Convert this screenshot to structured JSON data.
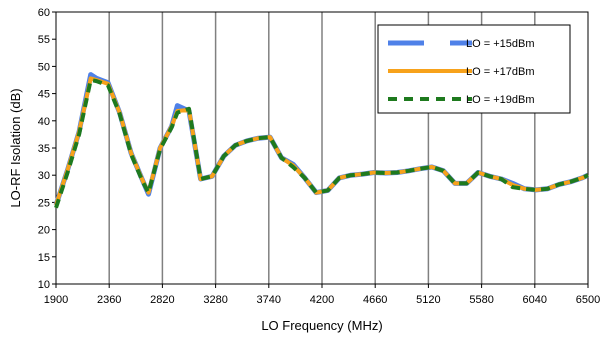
{
  "chart_data": {
    "type": "line",
    "xlabel": "LO Frequency (MHz)",
    "ylabel": "LO-RF Isolation (dB)",
    "xlim": [
      1900,
      6500
    ],
    "ylim": [
      10,
      60
    ],
    "x_ticks": [
      1900,
      2360,
      2820,
      3280,
      3740,
      4200,
      4660,
      5120,
      5580,
      6040,
      6500
    ],
    "y_ticks": [
      10,
      15,
      20,
      25,
      30,
      35,
      40,
      45,
      50,
      55,
      60
    ],
    "grid": "vertical",
    "legend_position": "top-right",
    "x": [
      1900,
      2000,
      2100,
      2200,
      2250,
      2350,
      2450,
      2550,
      2650,
      2700,
      2800,
      2900,
      2950,
      3050,
      3150,
      3250,
      3350,
      3450,
      3550,
      3650,
      3750,
      3850,
      3950,
      4050,
      4150,
      4250,
      4350,
      4450,
      4550,
      4650,
      4750,
      4850,
      4950,
      5050,
      5150,
      5250,
      5350,
      5450,
      5550,
      5650,
      5750,
      5850,
      5950,
      6050,
      6150,
      6250,
      6350,
      6450,
      6500
    ],
    "series": [
      {
        "name": "LO = +15dBm",
        "color": "#4F81E8",
        "values": [
          24.5,
          31,
          38,
          48.5,
          47.8,
          47,
          41.5,
          34,
          29,
          26.5,
          35,
          39,
          42.8,
          41.8,
          29.3,
          29.8,
          33.5,
          35.5,
          36.3,
          36.8,
          37,
          33.2,
          32,
          29.5,
          26.8,
          27.2,
          29.5,
          30,
          30.2,
          30.5,
          30.4,
          30.5,
          30.8,
          31.2,
          31.5,
          30.8,
          28.5,
          28.5,
          30.5,
          29.8,
          29.3,
          28.5,
          27.5,
          27.3,
          27.5,
          28.3,
          28.8,
          29.5,
          30
        ]
      },
      {
        "name": "LO = +17dBm",
        "color": "#F7A21B",
        "values": [
          24.5,
          31,
          38,
          47.8,
          47.5,
          46.8,
          41.5,
          34,
          29,
          26.8,
          35,
          39,
          41.8,
          42,
          29.3,
          29.8,
          33.5,
          35.5,
          36.3,
          36.8,
          37,
          33.2,
          31.8,
          29.5,
          26.8,
          27.2,
          29.5,
          30,
          30.2,
          30.5,
          30.4,
          30.5,
          30.8,
          31.2,
          31.5,
          30.8,
          28.5,
          28.5,
          30.5,
          29.8,
          29.3,
          28.2,
          27.5,
          27.3,
          27.5,
          28.3,
          28.8,
          29.5,
          30
        ]
      },
      {
        "name": "LO = +19dBm",
        "color": "#1E7A1E",
        "values": [
          24,
          30.5,
          37.5,
          47.5,
          47.3,
          46.5,
          41.3,
          33.8,
          28.8,
          26.8,
          34.8,
          38.8,
          41.5,
          42.2,
          29.3,
          29.8,
          33.5,
          35.5,
          36.3,
          36.8,
          37,
          33.2,
          31.5,
          29.5,
          26.8,
          27.2,
          29.5,
          30,
          30.2,
          30.5,
          30.4,
          30.5,
          30.8,
          31.2,
          31.5,
          30.8,
          28.5,
          28.5,
          30.5,
          29.8,
          29.3,
          27.8,
          27.5,
          27.3,
          27.5,
          28.3,
          28.8,
          29.5,
          30
        ]
      }
    ]
  }
}
